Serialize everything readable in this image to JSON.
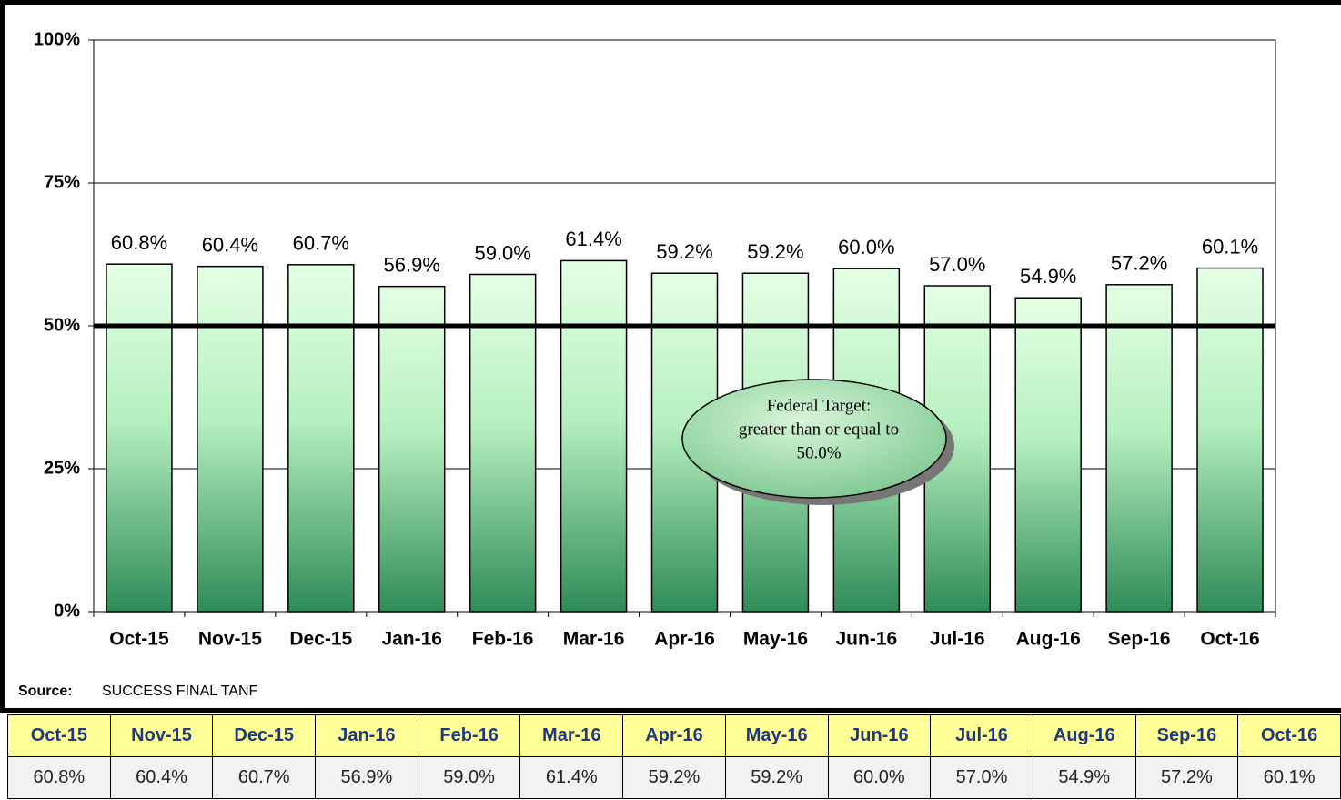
{
  "chart_data": {
    "type": "bar",
    "categories": [
      "Oct-15",
      "Nov-15",
      "Dec-15",
      "Jan-16",
      "Feb-16",
      "Mar-16",
      "Apr-16",
      "May-16",
      "Jun-16",
      "Jul-16",
      "Aug-16",
      "Sep-16",
      "Oct-16"
    ],
    "values": [
      60.8,
      60.4,
      60.7,
      56.9,
      59.0,
      61.4,
      59.2,
      59.2,
      60.0,
      57.0,
      54.9,
      57.2,
      60.1
    ],
    "value_labels": [
      "60.8%",
      "60.4%",
      "60.7%",
      "56.9%",
      "59.0%",
      "61.4%",
      "59.2%",
      "59.2%",
      "60.0%",
      "57.0%",
      "54.9%",
      "57.2%",
      "60.1%"
    ],
    "color": "#2e8b57",
    "ylim": [
      0,
      100
    ],
    "yticks": [
      {
        "value": 0,
        "label": "0%"
      },
      {
        "value": 25,
        "label": "25%"
      },
      {
        "value": 50,
        "label": "50%"
      },
      {
        "value": 75,
        "label": "75%"
      },
      {
        "value": 100,
        "label": "100%"
      }
    ],
    "grid": true,
    "reference_line": 50,
    "annotation": [
      "Federal Target:",
      "greater than or equal to",
      "50.0%"
    ],
    "source_label": "Source:",
    "source": "SUCCESS FINAL TANF"
  }
}
